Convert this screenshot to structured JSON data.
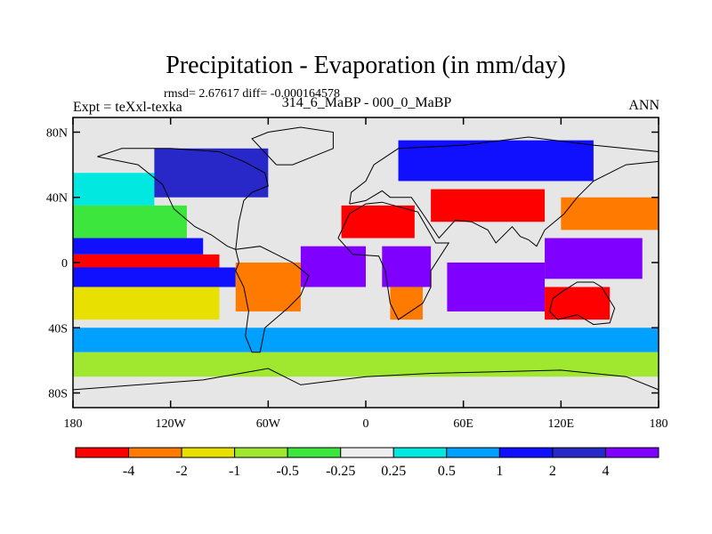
{
  "title": "Precipitation - Evaporation (in mm/day)",
  "stats": "rmsd= 2.67617 diff= -0.000164578",
  "experiment_label": "Expt = teXxl-texka",
  "comparison_label": "314_6_MaBP - 000_0_MaBP",
  "season": "ANN",
  "lat_ticks": [
    {
      "lat": 80,
      "label": "80N"
    },
    {
      "lat": 40,
      "label": "40N"
    },
    {
      "lat": 0,
      "label": "0"
    },
    {
      "lat": -40,
      "label": "40S"
    },
    {
      "lat": -80,
      "label": "80S"
    }
  ],
  "lon_ticks": [
    {
      "lon": -180,
      "label": "180"
    },
    {
      "lon": -120,
      "label": "120W"
    },
    {
      "lon": -60,
      "label": "60W"
    },
    {
      "lon": 0,
      "label": "0"
    },
    {
      "lon": 60,
      "label": "60E"
    },
    {
      "lon": 120,
      "label": "120E"
    },
    {
      "lon": 180,
      "label": "180"
    }
  ],
  "colorbar": {
    "colors": [
      "#ff0000",
      "#ff7a00",
      "#e8e000",
      "#a0e830",
      "#3ce63c",
      "#eeeeee",
      "#00e8e0",
      "#00a0ff",
      "#1010ff",
      "#2828c8",
      "#8000ff"
    ],
    "boundary_labels": [
      "-4",
      "-2",
      "-1",
      "-0.5",
      "-0.25",
      "0.25",
      "0.5",
      "1",
      "2",
      "4"
    ]
  },
  "map_background": "#e6e6e6",
  "regions": [
    {
      "name": "north-pacific-band",
      "lon": [
        -180,
        -130
      ],
      "lat": [
        35,
        55
      ],
      "value": "#00e8e0"
    },
    {
      "name": "subtropical-pacific",
      "lon": [
        -180,
        -110
      ],
      "lat": [
        15,
        35
      ],
      "value": "#3ce63c"
    },
    {
      "name": "pacific-itcz-blue",
      "lon": [
        -180,
        -100
      ],
      "lat": [
        5,
        15
      ],
      "value": "#1010ff"
    },
    {
      "name": "pacific-equatorial-red",
      "lon": [
        -180,
        -90
      ],
      "lat": [
        -3,
        5
      ],
      "value": "#ff0000"
    },
    {
      "name": "pacific-south-blue",
      "lon": [
        -180,
        -80
      ],
      "lat": [
        -15,
        -3
      ],
      "value": "#1010ff"
    },
    {
      "name": "south-pacific-yellow",
      "lon": [
        -180,
        -90
      ],
      "lat": [
        -35,
        -15
      ],
      "value": "#e8e000"
    },
    {
      "name": "southern-ocean-blue",
      "lon": [
        -180,
        180
      ],
      "lat": [
        -55,
        -40
      ],
      "value": "#00a0ff"
    },
    {
      "name": "antarctic-belt",
      "lon": [
        -180,
        180
      ],
      "lat": [
        -70,
        -55
      ],
      "value": "#a0e830"
    },
    {
      "name": "north-america",
      "lon": [
        -130,
        -60
      ],
      "lat": [
        40,
        70
      ],
      "value": "#2828c8"
    },
    {
      "name": "south-america",
      "lon": [
        -80,
        -40
      ],
      "lat": [
        -30,
        0
      ],
      "value": "#ff7a00"
    },
    {
      "name": "tropical-atlantic",
      "lon": [
        -40,
        0
      ],
      "lat": [
        -15,
        10
      ],
      "value": "#8000ff"
    },
    {
      "name": "sahara",
      "lon": [
        -15,
        30
      ],
      "lat": [
        15,
        35
      ],
      "value": "#ff0000"
    },
    {
      "name": "central-africa",
      "lon": [
        10,
        40
      ],
      "lat": [
        -15,
        10
      ],
      "value": "#8000ff"
    },
    {
      "name": "southern-africa",
      "lon": [
        15,
        35
      ],
      "lat": [
        -35,
        -15
      ],
      "value": "#ff7a00"
    },
    {
      "name": "eurasia-north",
      "lon": [
        20,
        140
      ],
      "lat": [
        50,
        75
      ],
      "value": "#1010ff"
    },
    {
      "name": "asia-desert",
      "lon": [
        40,
        110
      ],
      "lat": [
        25,
        45
      ],
      "value": "#ff0000"
    },
    {
      "name": "indian-ocean",
      "lon": [
        50,
        110
      ],
      "lat": [
        -30,
        0
      ],
      "value": "#8000ff"
    },
    {
      "name": "australia",
      "lon": [
        110,
        150
      ],
      "lat": [
        -35,
        -15
      ],
      "value": "#ff0000"
    },
    {
      "name": "west-pacific-warm-pool",
      "lon": [
        110,
        170
      ],
      "lat": [
        -10,
        15
      ],
      "value": "#8000ff"
    },
    {
      "name": "east-asia-orange",
      "lon": [
        120,
        180
      ],
      "lat": [
        20,
        40
      ],
      "value": "#ff7a00"
    }
  ],
  "coastlines": [
    {
      "name": "north-america-coast",
      "points": [
        [
          -165,
          65
        ],
        [
          -140,
          60
        ],
        [
          -125,
          48
        ],
        [
          -118,
          33
        ],
        [
          -105,
          22
        ],
        [
          -95,
          17
        ],
        [
          -85,
          10
        ],
        [
          -80,
          8
        ],
        [
          -78,
          25
        ],
        [
          -75,
          38
        ],
        [
          -70,
          43
        ],
        [
          -60,
          47
        ],
        [
          -62,
          55
        ],
        [
          -75,
          62
        ],
        [
          -90,
          68
        ],
        [
          -120,
          70
        ],
        [
          -150,
          70
        ],
        [
          -165,
          65
        ]
      ]
    },
    {
      "name": "south-america-coast",
      "points": [
        [
          -80,
          8
        ],
        [
          -78,
          0
        ],
        [
          -80,
          -5
        ],
        [
          -75,
          -15
        ],
        [
          -72,
          -30
        ],
        [
          -74,
          -45
        ],
        [
          -70,
          -55
        ],
        [
          -65,
          -55
        ],
        [
          -62,
          -40
        ],
        [
          -48,
          -28
        ],
        [
          -40,
          -20
        ],
        [
          -35,
          -8
        ],
        [
          -45,
          0
        ],
        [
          -55,
          5
        ],
        [
          -65,
          10
        ],
        [
          -80,
          8
        ]
      ]
    },
    {
      "name": "africa-coast",
      "points": [
        [
          -17,
          15
        ],
        [
          -10,
          30
        ],
        [
          0,
          36
        ],
        [
          10,
          37
        ],
        [
          32,
          31
        ],
        [
          43,
          12
        ],
        [
          51,
          12
        ],
        [
          40,
          -5
        ],
        [
          40,
          -15
        ],
        [
          35,
          -25
        ],
        [
          20,
          -35
        ],
        [
          15,
          -25
        ],
        [
          12,
          -5
        ],
        [
          8,
          4
        ],
        [
          -8,
          5
        ],
        [
          -17,
          15
        ]
      ]
    },
    {
      "name": "eurasia-coast",
      "points": [
        [
          -10,
          36
        ],
        [
          -9,
          43
        ],
        [
          0,
          50
        ],
        [
          5,
          60
        ],
        [
          20,
          70
        ],
        [
          60,
          72
        ],
        [
          100,
          77
        ],
        [
          140,
          72
        ],
        [
          180,
          68
        ],
        [
          180,
          62
        ],
        [
          160,
          60
        ],
        [
          140,
          50
        ],
        [
          130,
          40
        ],
        [
          122,
          30
        ],
        [
          110,
          20
        ],
        [
          105,
          10
        ],
        [
          100,
          14
        ],
        [
          95,
          16
        ],
        [
          90,
          22
        ],
        [
          80,
          12
        ],
        [
          75,
          20
        ],
        [
          65,
          25
        ],
        [
          55,
          26
        ],
        [
          45,
          15
        ],
        [
          35,
          30
        ],
        [
          28,
          40
        ],
        [
          15,
          40
        ],
        [
          10,
          44
        ],
        [
          0,
          38
        ],
        [
          -10,
          36
        ]
      ]
    },
    {
      "name": "australia-coast",
      "points": [
        [
          115,
          -22
        ],
        [
          113,
          -30
        ],
        [
          118,
          -35
        ],
        [
          130,
          -32
        ],
        [
          140,
          -38
        ],
        [
          150,
          -37
        ],
        [
          153,
          -28
        ],
        [
          145,
          -15
        ],
        [
          140,
          -12
        ],
        [
          130,
          -12
        ],
        [
          122,
          -17
        ],
        [
          115,
          -22
        ]
      ]
    },
    {
      "name": "greenland-coast",
      "points": [
        [
          -55,
          60
        ],
        [
          -45,
          60
        ],
        [
          -20,
          70
        ],
        [
          -20,
          80
        ],
        [
          -40,
          83
        ],
        [
          -60,
          80
        ],
        [
          -70,
          76
        ],
        [
          -55,
          60
        ]
      ]
    },
    {
      "name": "antarctica-coast",
      "points": [
        [
          -180,
          -78
        ],
        [
          -140,
          -75
        ],
        [
          -100,
          -72
        ],
        [
          -60,
          -65
        ],
        [
          -40,
          -75
        ],
        [
          0,
          -70
        ],
        [
          40,
          -68
        ],
        [
          80,
          -67
        ],
        [
          120,
          -66
        ],
        [
          160,
          -70
        ],
        [
          180,
          -78
        ]
      ]
    }
  ]
}
